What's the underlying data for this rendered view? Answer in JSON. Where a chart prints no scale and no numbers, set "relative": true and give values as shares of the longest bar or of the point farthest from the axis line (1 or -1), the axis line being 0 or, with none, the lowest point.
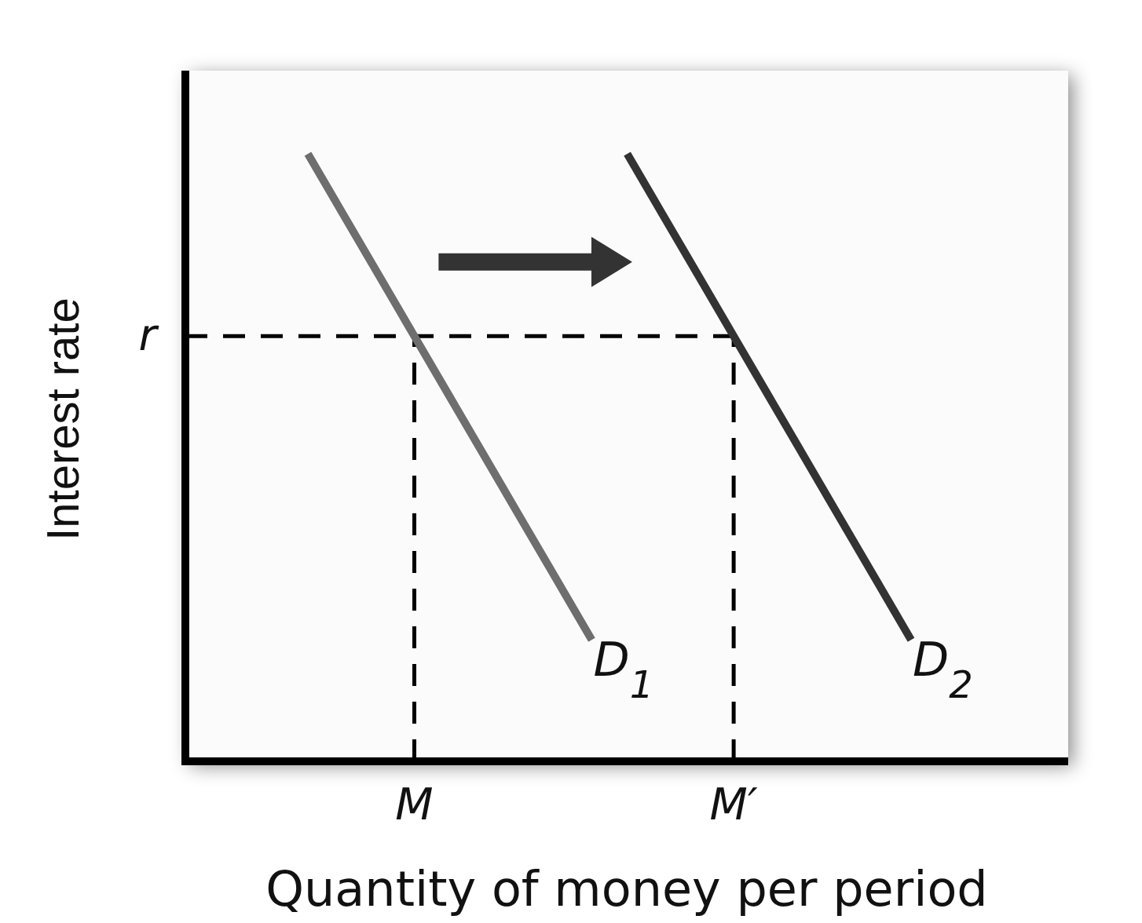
{
  "chart_data": {
    "type": "line",
    "relative": true,
    "xlabel": "Quantity of money per period",
    "ylabel": "Interest rate",
    "categories": [
      null,
      null,
      null,
      "M",
      null,
      null,
      null,
      null,
      null,
      null,
      null,
      null,
      "M′",
      null,
      null,
      null,
      null,
      null
    ],
    "series": [
      {
        "name": "D$_{1}$",
        "color": "#6e6e6e",
        "values": [
          1,
          0.9,
          0.8,
          0.7,
          0.6,
          0.5,
          0.4,
          0.3,
          0.2,
          null,
          null,
          null,
          null,
          null,
          null,
          null,
          null,
          null
        ]
      },
      {
        "name": "D$_{2}$",
        "color": "#333333",
        "values": [
          null,
          null,
          null,
          null,
          null,
          null,
          null,
          null,
          null,
          1,
          0.9,
          0.8,
          0.7,
          0.6,
          0.5,
          0.4,
          0.3,
          0.2
        ]
      }
    ],
    "ref_lines": [
      {
        "axis": "y",
        "value": 0.7,
        "label": "r",
        "line_style": "dashed",
        "color": "#000000"
      },
      {
        "axis": "x",
        "value": "M",
        "line_style": "dashed",
        "color": "#000000"
      },
      {
        "axis": "x",
        "value": "M′",
        "line_style": "dashed",
        "color": "#000000"
      }
    ]
  }
}
